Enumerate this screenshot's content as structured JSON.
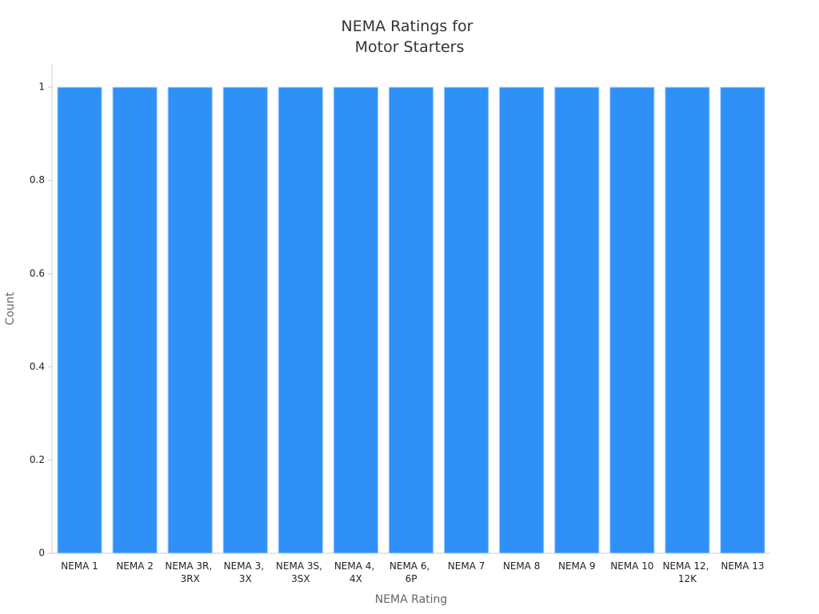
{
  "chart_data": {
    "type": "bar",
    "title": "NEMA Ratings for Motor Starters",
    "x_label": "NEMA Rating",
    "y_label": "Count",
    "categories": [
      "NEMA 1",
      "NEMA 2",
      "NEMA 3R, 3RX",
      "NEMA 3, 3X",
      "NEMA 3S, 3SX",
      "NEMA 4, 4X",
      "NEMA 6, 6P",
      "NEMA 7",
      "NEMA 8",
      "NEMA 9",
      "NEMA 10",
      "NEMA 12, 12K",
      "NEMA 13"
    ],
    "values": [
      1,
      1,
      1,
      1,
      1,
      1,
      1,
      1,
      1,
      1,
      1,
      1,
      1
    ],
    "color": "#2f91f8",
    "ylim": [
      0,
      1.05
    ],
    "yticks": [
      0,
      0.2,
      0.4,
      0.6,
      0.8,
      1
    ],
    "grid": false
  }
}
